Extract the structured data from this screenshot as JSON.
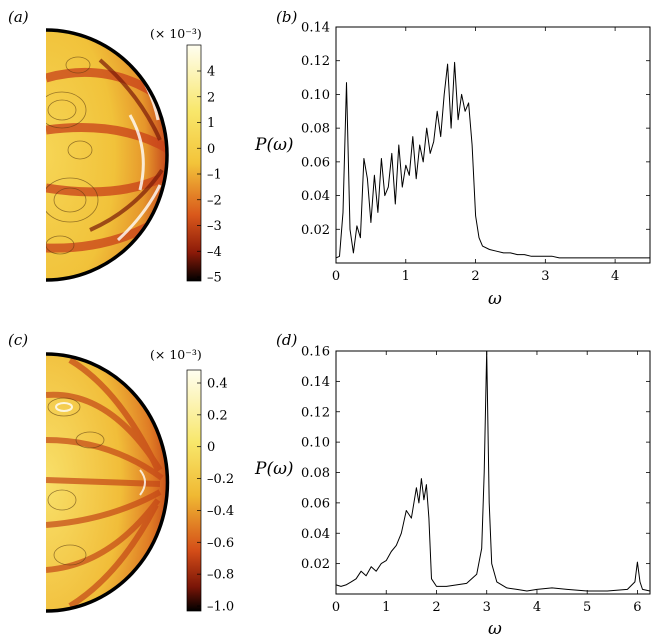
{
  "figure": {
    "panels": [
      {
        "id": "a",
        "label": "(a)",
        "multiplier": "(× 10⁻³)",
        "colorbar_ticks": [
          "4",
          "2",
          "1",
          "0",
          "–1",
          "–2",
          "–3",
          "–4",
          "–5"
        ]
      },
      {
        "id": "b",
        "label": "(b)"
      },
      {
        "id": "c",
        "label": "(c)",
        "multiplier": "(× 10⁻³)",
        "colorbar_ticks": [
          "0.4",
          "0.2",
          "0",
          "–0.2",
          "–0.4",
          "–0.6",
          "–0.8",
          "–1.0"
        ]
      },
      {
        "id": "d",
        "label": "(d)"
      }
    ],
    "colors": {
      "line": "#000000",
      "cmap_high": "#fffde0",
      "cmap_mid": "#f7c631",
      "cmap_low": "#c43a12",
      "cmap_min": "#000000"
    }
  },
  "chart_data": [
    {
      "panel": "b",
      "type": "line",
      "xlabel": "ω",
      "ylabel": "P(ω)",
      "xlim": [
        0,
        4.5
      ],
      "ylim": [
        0,
        0.14
      ],
      "xticks": [
        0,
        1,
        2,
        3,
        4
      ],
      "yticks": [
        0.02,
        0.04,
        0.06,
        0.08,
        0.1,
        0.12,
        0.14
      ],
      "x": [
        0,
        0.05,
        0.1,
        0.15,
        0.2,
        0.25,
        0.3,
        0.35,
        0.4,
        0.45,
        0.5,
        0.55,
        0.6,
        0.65,
        0.7,
        0.75,
        0.8,
        0.85,
        0.9,
        0.95,
        1.0,
        1.05,
        1.1,
        1.15,
        1.2,
        1.25,
        1.3,
        1.35,
        1.4,
        1.45,
        1.5,
        1.55,
        1.6,
        1.65,
        1.7,
        1.75,
        1.8,
        1.85,
        1.9,
        1.95,
        2.0,
        2.05,
        2.1,
        2.2,
        2.3,
        2.4,
        2.5,
        2.6,
        2.7,
        2.8,
        2.9,
        3.0,
        3.1,
        3.2,
        3.3,
        3.4,
        3.5,
        3.6,
        3.7,
        3.8,
        3.9,
        4.0,
        4.1,
        4.2,
        4.3,
        4.4,
        4.5
      ],
      "values": [
        0.003,
        0.004,
        0.03,
        0.107,
        0.02,
        0.006,
        0.022,
        0.015,
        0.062,
        0.05,
        0.024,
        0.052,
        0.03,
        0.062,
        0.04,
        0.045,
        0.065,
        0.035,
        0.07,
        0.045,
        0.058,
        0.052,
        0.075,
        0.05,
        0.07,
        0.06,
        0.08,
        0.065,
        0.072,
        0.09,
        0.075,
        0.1,
        0.118,
        0.08,
        0.119,
        0.085,
        0.1,
        0.09,
        0.095,
        0.07,
        0.028,
        0.015,
        0.01,
        0.008,
        0.007,
        0.006,
        0.006,
        0.005,
        0.005,
        0.004,
        0.004,
        0.004,
        0.004,
        0.003,
        0.003,
        0.003,
        0.003,
        0.003,
        0.003,
        0.003,
        0.003,
        0.003,
        0.003,
        0.003,
        0.003,
        0.003,
        0.003
      ]
    },
    {
      "panel": "d",
      "type": "line",
      "xlabel": "ω",
      "ylabel": "P(ω)",
      "xlim": [
        0,
        6.25
      ],
      "ylim": [
        0,
        0.16
      ],
      "xticks": [
        0,
        1,
        2,
        3,
        4,
        5,
        6
      ],
      "yticks": [
        0.02,
        0.04,
        0.06,
        0.08,
        0.1,
        0.12,
        0.14,
        0.16
      ],
      "x": [
        0,
        0.1,
        0.2,
        0.3,
        0.4,
        0.5,
        0.6,
        0.7,
        0.8,
        0.9,
        1.0,
        1.1,
        1.2,
        1.3,
        1.4,
        1.5,
        1.6,
        1.65,
        1.7,
        1.75,
        1.8,
        1.85,
        1.9,
        2.0,
        2.2,
        2.4,
        2.6,
        2.8,
        2.9,
        2.95,
        3.0,
        3.05,
        3.1,
        3.2,
        3.4,
        3.6,
        3.8,
        4.0,
        4.3,
        4.6,
        5.0,
        5.4,
        5.8,
        5.95,
        6.0,
        6.05,
        6.1,
        6.25
      ],
      "values": [
        0.006,
        0.005,
        0.006,
        0.008,
        0.01,
        0.015,
        0.012,
        0.018,
        0.015,
        0.02,
        0.022,
        0.028,
        0.032,
        0.04,
        0.055,
        0.05,
        0.07,
        0.06,
        0.076,
        0.062,
        0.072,
        0.05,
        0.01,
        0.005,
        0.005,
        0.006,
        0.007,
        0.013,
        0.03,
        0.08,
        0.16,
        0.06,
        0.02,
        0.008,
        0.004,
        0.003,
        0.002,
        0.003,
        0.004,
        0.003,
        0.002,
        0.002,
        0.003,
        0.008,
        0.021,
        0.008,
        0.003,
        0.002
      ]
    }
  ]
}
